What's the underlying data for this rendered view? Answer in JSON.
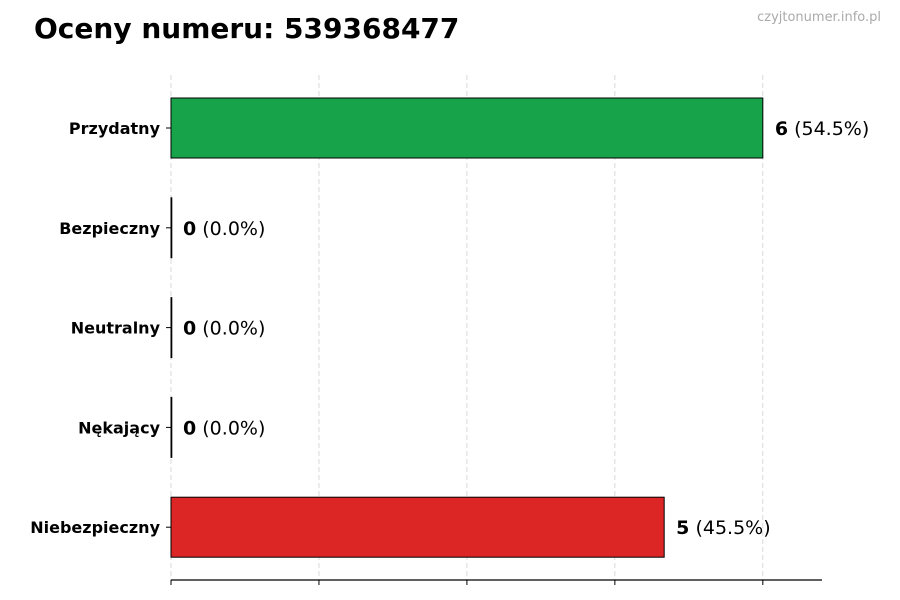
{
  "chart_data": {
    "type": "bar",
    "orientation": "horizontal",
    "title": "Oceny numeru: 539368477",
    "watermark": "czyjtonumer.info.pl",
    "categories": [
      "Przydatny",
      "Bezpieczny",
      "Neutralny",
      "Nękający",
      "Niebezpieczny"
    ],
    "values": [
      6,
      0,
      0,
      0,
      5
    ],
    "value_labels": [
      "(54.5%)",
      "(0.0%)",
      "(0.0%)",
      "(0.0%)",
      "(45.5%)"
    ],
    "colors": [
      "#17a34a",
      "#6b7280",
      "#9ca3af",
      "#f59e0b",
      "#dc2626"
    ],
    "xlim": [
      0,
      6.6
    ],
    "xticks": [
      0,
      1.5,
      3,
      4.5,
      6
    ],
    "xtick_labels_shown": false,
    "grid": "x-dashed",
    "xlabel": "",
    "ylabel": ""
  }
}
